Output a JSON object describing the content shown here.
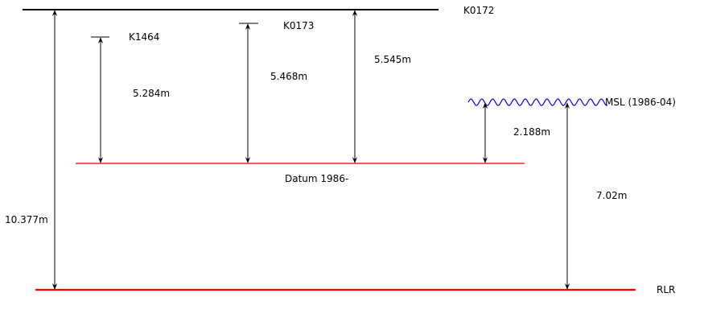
{
  "levels": {
    "top": {
      "label": "K0172"
    },
    "datum": {
      "label": "Datum 1986-"
    },
    "rlr": {
      "label": "RLR"
    },
    "msl": {
      "label": "MSL (1986-04)"
    }
  },
  "benchmarks": [
    {
      "label": "K1464"
    },
    {
      "label": "K0173"
    }
  ],
  "measurements": {
    "k1464_to_datum": "5.284m",
    "k0173_to_datum": "5.468m",
    "k0172_to_datum": "5.545m",
    "k0172_to_rlr": "10.377m",
    "msl_to_datum": "2.188m",
    "msl_to_rlr": "7.02m"
  },
  "colors": {
    "top_line": "#000000",
    "datum_line": "#dd0000",
    "rlr_line": "#ee0000",
    "msl_wave": "#0000ee"
  }
}
